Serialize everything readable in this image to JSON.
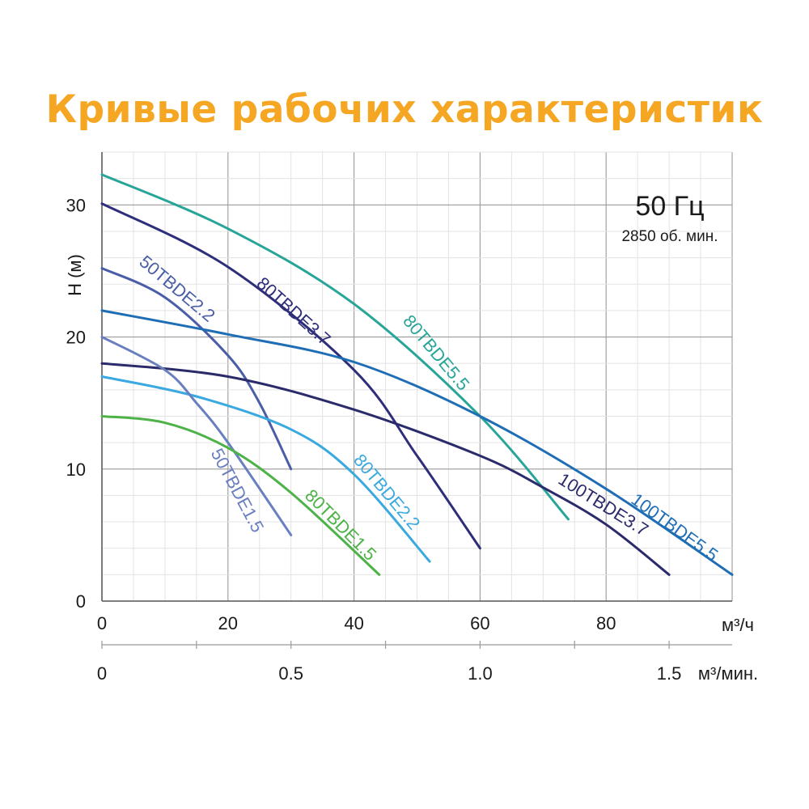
{
  "chart_data": {
    "type": "line",
    "title": "Кривые рабочих характеристик",
    "title_color": "#f5a623",
    "xlabel": "м³/ч",
    "ylabel": "Н (м)",
    "xlim": [
      0,
      100
    ],
    "ylim": [
      0,
      34
    ],
    "x_ticks": [
      "0",
      "20",
      "40",
      "60",
      "80"
    ],
    "y_ticks": [
      "0",
      "10",
      "20",
      "30"
    ],
    "secondary_axis": {
      "label": "м³/мин.",
      "ticks": [
        "0",
        "0.5",
        "1.0",
        "1.5"
      ],
      "tick_values": [
        0,
        0.5,
        1.0,
        1.5
      ]
    },
    "grid": true,
    "annotation": {
      "frequency": "50 Гц",
      "speed": "2850 об. мин."
    },
    "series": [
      {
        "name": "80TBDE5.5",
        "color": "#27a598",
        "points": [
          [
            0,
            32.3
          ],
          [
            20,
            28.2
          ],
          [
            40,
            22.5
          ],
          [
            60,
            14
          ],
          [
            74,
            6.2
          ]
        ]
      },
      {
        "name": "80TBDE3.7",
        "color": "#2e2e7a",
        "points": [
          [
            0,
            30.1
          ],
          [
            20,
            25.3
          ],
          [
            40,
            17.5
          ],
          [
            50,
            11
          ],
          [
            60,
            4
          ]
        ]
      },
      {
        "name": "50TBDE2.2",
        "color": "#4a5ea8",
        "points": [
          [
            0,
            25.2
          ],
          [
            10,
            23
          ],
          [
            20,
            18.6
          ],
          [
            25,
            15
          ],
          [
            30,
            10
          ]
        ]
      },
      {
        "name": "100TBDE5.5",
        "color": "#1f6eb5",
        "points": [
          [
            0,
            22
          ],
          [
            20,
            20.2
          ],
          [
            40,
            18.1
          ],
          [
            60,
            14
          ],
          [
            80,
            8.5
          ],
          [
            100,
            2
          ]
        ]
      },
      {
        "name": "100TBDE3.7",
        "color": "#2b2a6b",
        "points": [
          [
            0,
            18
          ],
          [
            20,
            17
          ],
          [
            40,
            14.5
          ],
          [
            60,
            11
          ],
          [
            70,
            8.6
          ],
          [
            80,
            5.8
          ],
          [
            90,
            2
          ]
        ]
      },
      {
        "name": "80TBDE2.2",
        "color": "#3aa9e0",
        "points": [
          [
            0,
            17
          ],
          [
            15,
            15.5
          ],
          [
            30,
            13
          ],
          [
            40,
            9.6
          ],
          [
            52,
            3
          ]
        ]
      },
      {
        "name": "50TBDE1.5",
        "color": "#6a7fc0",
        "points": [
          [
            0,
            20
          ],
          [
            10,
            17.5
          ],
          [
            15,
            15
          ],
          [
            20,
            12
          ],
          [
            30,
            5
          ]
        ]
      },
      {
        "name": "80TBDE1.5",
        "color": "#4db348",
        "points": [
          [
            0,
            14
          ],
          [
            10,
            13.5
          ],
          [
            20,
            11.6
          ],
          [
            30,
            8.2
          ],
          [
            44,
            2
          ]
        ]
      }
    ]
  }
}
